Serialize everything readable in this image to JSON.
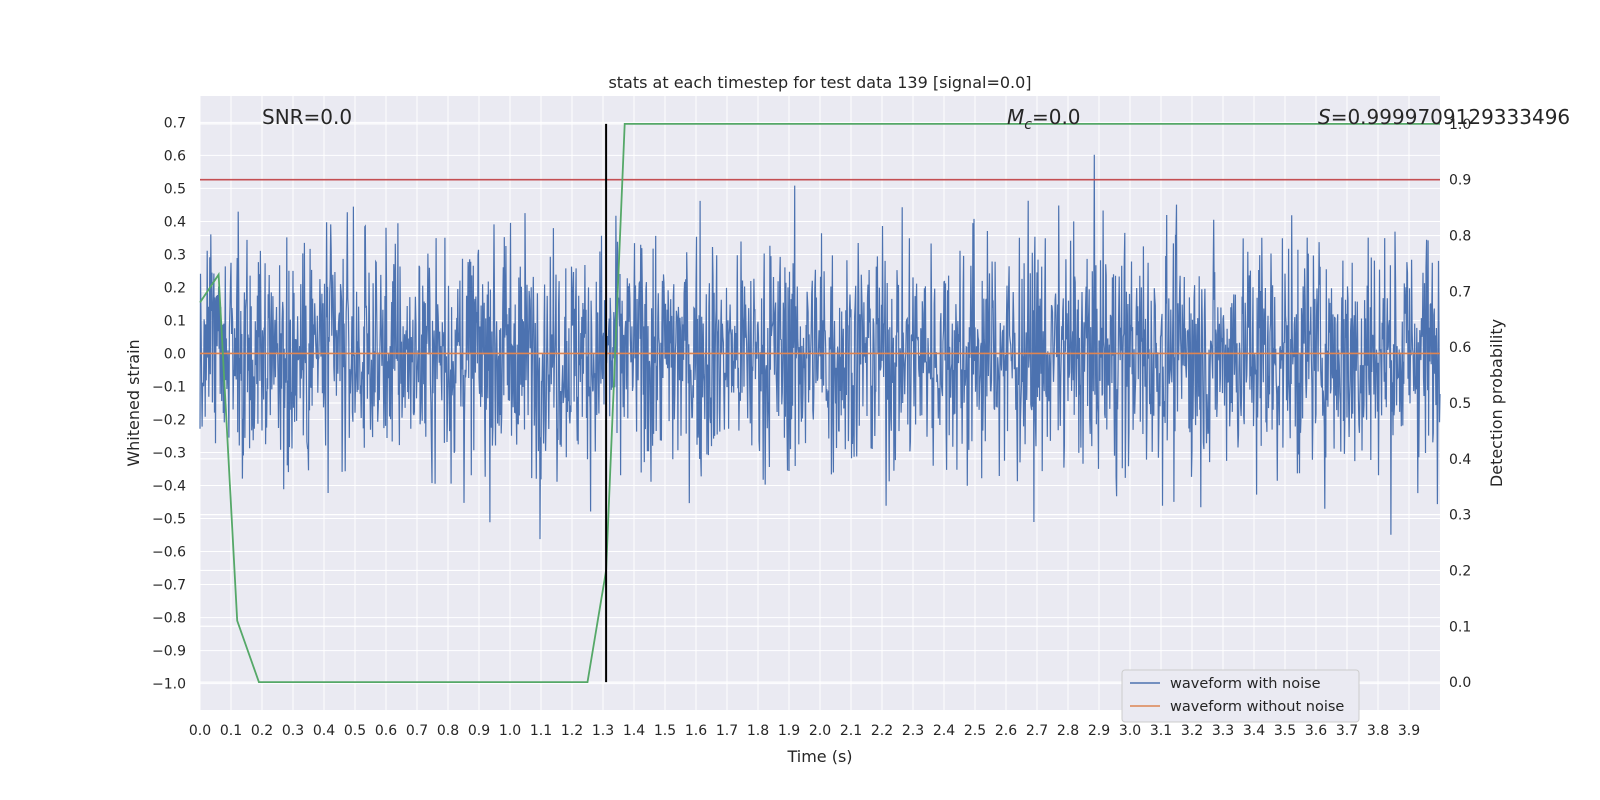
{
  "chart_data": {
    "type": "line",
    "title": "stats at each timestep for test data 139 [signal=0.0]",
    "xlabel": "Time (s)",
    "ylabel": "Whitened strain",
    "ylabel_right": "Detection probability",
    "xlim": [
      0.0,
      4.0
    ],
    "ylim": [
      -1.08,
      0.78
    ],
    "ylim_right": [
      -0.05,
      1.05
    ],
    "xticks": [
      "0.0",
      "0.1",
      "0.2",
      "0.3",
      "0.4",
      "0.5",
      "0.6",
      "0.7",
      "0.8",
      "0.9",
      "1.0",
      "1.1",
      "1.2",
      "1.3",
      "1.4",
      "1.5",
      "1.6",
      "1.7",
      "1.8",
      "1.9",
      "2.0",
      "2.1",
      "2.2",
      "2.3",
      "2.4",
      "2.5",
      "2.6",
      "2.7",
      "2.8",
      "2.9",
      "3.0",
      "3.1",
      "3.2",
      "3.3",
      "3.4",
      "3.5",
      "3.6",
      "3.7",
      "3.8",
      "3.9"
    ],
    "yticks": [
      "0.7",
      "0.6",
      "0.5",
      "0.4",
      "0.3",
      "0.2",
      "0.1",
      "0.0",
      "−0.1",
      "−0.2",
      "−0.3",
      "−0.4",
      "−0.5",
      "−0.6",
      "−0.7",
      "−0.8",
      "−0.9",
      "−1.0"
    ],
    "yticks_right": [
      "1.0",
      "0.9",
      "0.8",
      "0.7",
      "0.6",
      "0.5",
      "0.4",
      "0.3",
      "0.2",
      "0.1",
      "0.0"
    ],
    "grid": true,
    "legend_position": "bottom-right",
    "series": [
      {
        "name": "waveform with noise",
        "color": "#4c72b0",
        "kind": "noise",
        "approx_abs_max": 0.55
      },
      {
        "name": "waveform without noise",
        "color": "#dd8452",
        "kind": "constant",
        "value": 0.0
      }
    ],
    "detection_probability": {
      "color": "#55a868",
      "x": [
        0.0,
        0.06,
        0.12,
        0.19,
        1.25,
        1.31,
        1.37,
        4.0
      ],
      "y": [
        0.68,
        0.73,
        0.11,
        0.0,
        0.0,
        0.2,
        1.0,
        1.0
      ]
    },
    "threshold": {
      "value_right": 0.9,
      "color": "#c44e52"
    },
    "vline": {
      "x": 1.31,
      "color": "#000000"
    },
    "annotations": [
      {
        "text": "SNR=0.0"
      },
      {
        "text": "Mc=0.0"
      },
      {
        "text": "S=0.9999709129333496"
      }
    ]
  }
}
